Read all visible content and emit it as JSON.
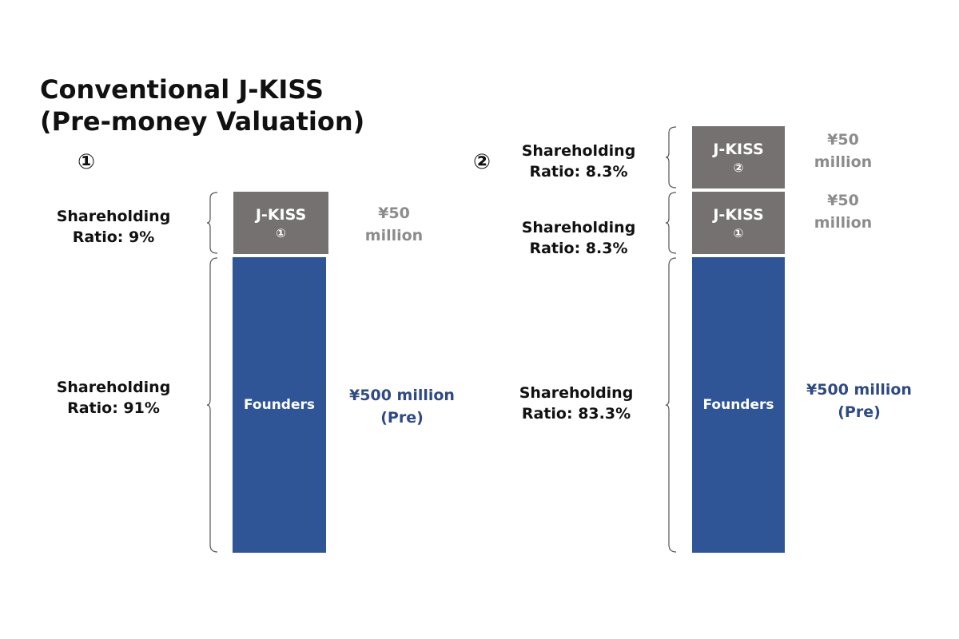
{
  "title": {
    "line1": "Conventional J-KISS",
    "line2": "(Pre-money Valuation)"
  },
  "panels": [
    {
      "number": "①",
      "segments": [
        {
          "kind": "jkiss",
          "label": "J-KISS",
          "sublabel": "①",
          "ratio_line1": "Shareholding",
          "ratio_line2": "Ratio: 9%",
          "amount_line1": "¥50",
          "amount_line2": "million"
        },
        {
          "kind": "founders",
          "label": "Founders",
          "ratio_line1": "Shareholding",
          "ratio_line2": "Ratio: 91%",
          "amount_line1": "¥500 million",
          "amount_line2": "(Pre)"
        }
      ]
    },
    {
      "number": "②",
      "segments": [
        {
          "kind": "jkiss",
          "label": "J-KISS",
          "sublabel": "②",
          "ratio_line1": "Shareholding",
          "ratio_line2": "Ratio: 8.3%",
          "amount_line1": "¥50",
          "amount_line2": "million"
        },
        {
          "kind": "jkiss",
          "label": "J-KISS",
          "sublabel": "①",
          "ratio_line1": "Shareholding",
          "ratio_line2": "Ratio: 8.3%",
          "amount_line1": "¥50",
          "amount_line2": "million"
        },
        {
          "kind": "founders",
          "label": "Founders",
          "ratio_line1": "Shareholding",
          "ratio_line2": "Ratio: 83.3%",
          "amount_line1": "¥500 million",
          "amount_line2": "(Pre)"
        }
      ]
    }
  ],
  "colors": {
    "jkiss": "#767171",
    "founders": "#2f5597",
    "amount_gray": "#8c8c8c",
    "amount_blue": "#2f4a82"
  }
}
